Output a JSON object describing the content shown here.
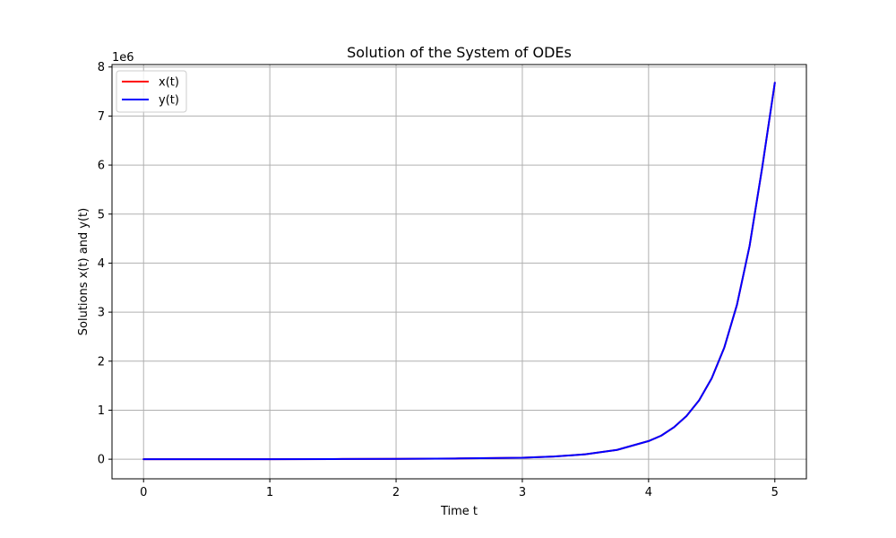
{
  "chart_data": {
    "type": "line",
    "title": "Solution of the System of ODEs",
    "xlabel": "Time t",
    "ylabel": "Solutions x(t) and y(t)",
    "y_offset_label": "1e6",
    "y_scale_factor": 1000000,
    "xlim": [
      -0.25,
      5.25
    ],
    "ylim": [
      -400000,
      8050000
    ],
    "xticks": [
      0,
      1,
      2,
      3,
      4,
      5
    ],
    "xtick_labels": [
      "0",
      "1",
      "2",
      "3",
      "4",
      "5"
    ],
    "yticks": [
      0,
      1000000,
      2000000,
      3000000,
      4000000,
      5000000,
      6000000,
      7000000,
      8000000
    ],
    "ytick_labels": [
      "0",
      "1",
      "2",
      "3",
      "4",
      "5",
      "6",
      "7",
      "8"
    ],
    "grid": true,
    "legend_position": "top-left",
    "colors": {
      "x_series": "#ff0000",
      "y_series": "#0000ff",
      "grid": "#b0b0b0",
      "axes": "#000000"
    },
    "x": [
      0,
      0.5,
      1,
      1.5,
      2,
      2.5,
      3,
      3.25,
      3.5,
      3.75,
      4,
      4.1,
      4.2,
      4.3,
      4.4,
      4.5,
      4.6,
      4.7,
      4.8,
      4.9,
      5
    ],
    "series": [
      {
        "name": "x(t)",
        "color": "#ff0000",
        "values": [
          1,
          60,
          1000,
          3000,
          7500,
          15000,
          30000,
          55000,
          100000,
          190000,
          370000,
          480000,
          650000,
          880000,
          1200000,
          1650000,
          2280000,
          3150000,
          4350000,
          5950000,
          7680000
        ]
      },
      {
        "name": "y(t)",
        "color": "#0000ff",
        "values": [
          1,
          60,
          1000,
          3000,
          7500,
          15000,
          30000,
          55000,
          100000,
          190000,
          370000,
          480000,
          650000,
          880000,
          1200000,
          1650000,
          2280000,
          3150000,
          4350000,
          5950000,
          7680000
        ]
      }
    ]
  }
}
